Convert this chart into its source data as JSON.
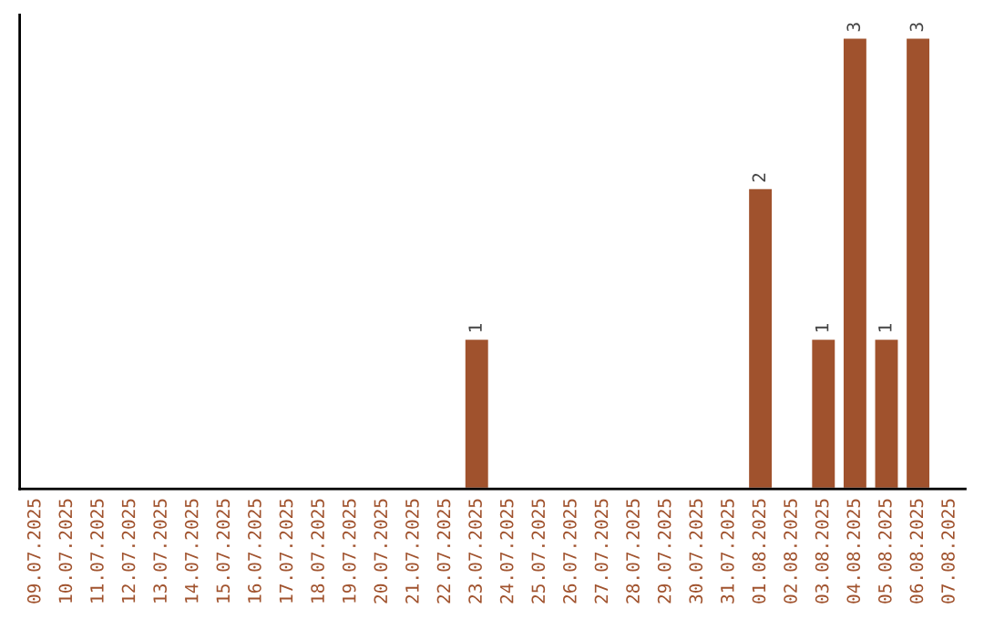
{
  "chart_data": {
    "type": "bar",
    "categories": [
      "09.07.2025",
      "10.07.2025",
      "11.07.2025",
      "12.07.2025",
      "13.07.2025",
      "14.07.2025",
      "15.07.2025",
      "16.07.2025",
      "17.07.2025",
      "18.07.2025",
      "19.07.2025",
      "20.07.2025",
      "21.07.2025",
      "22.07.2025",
      "23.07.2025",
      "24.07.2025",
      "25.07.2025",
      "26.07.2025",
      "27.07.2025",
      "28.07.2025",
      "29.07.2025",
      "30.07.2025",
      "31.07.2025",
      "01.08.2025",
      "02.08.2025",
      "03.08.2025",
      "04.08.2025",
      "05.08.2025",
      "06.08.2025",
      "07.08.2025"
    ],
    "values": [
      null,
      null,
      null,
      null,
      null,
      null,
      null,
      null,
      null,
      null,
      null,
      null,
      null,
      null,
      1,
      null,
      null,
      null,
      null,
      null,
      null,
      null,
      null,
      2,
      null,
      1,
      3,
      1,
      3,
      null
    ],
    "value_labels": [
      null,
      null,
      null,
      null,
      null,
      null,
      null,
      null,
      null,
      null,
      null,
      null,
      null,
      null,
      "1",
      null,
      null,
      null,
      null,
      null,
      null,
      null,
      null,
      "2",
      null,
      "1",
      "3",
      "1",
      "3",
      null
    ],
    "color": "#a0522d",
    "tick_labels": "x",
    "grid": false,
    "legend": false
  }
}
